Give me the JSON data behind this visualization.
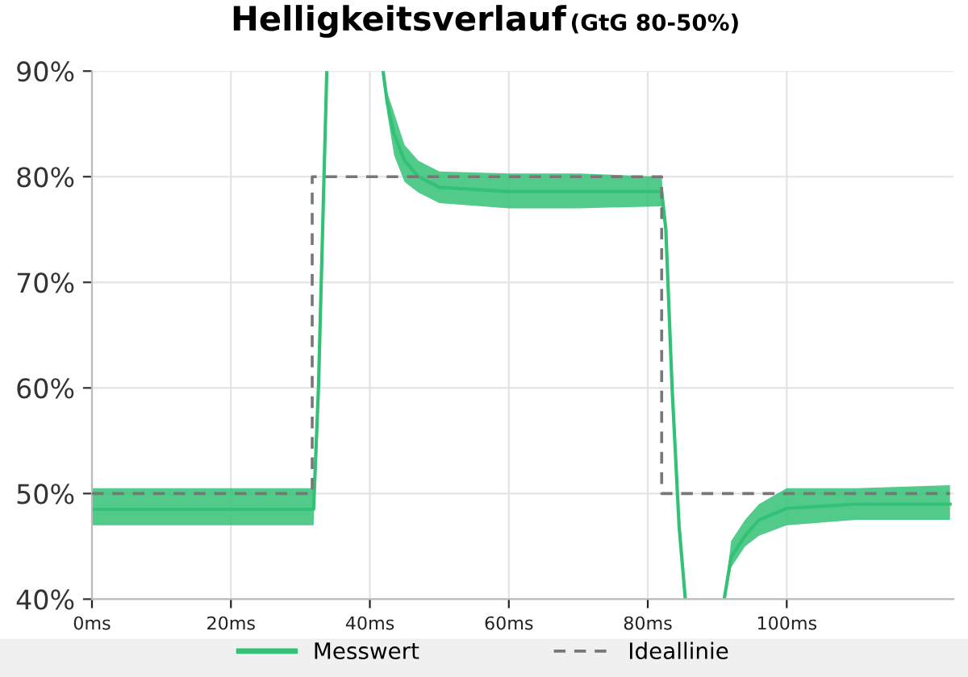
{
  "chart_data": {
    "type": "line",
    "title": "Helligkeitsverlauf",
    "subtitle": "(GtG 80-50%)",
    "xlim": [
      0,
      124
    ],
    "ylim": [
      40,
      90
    ],
    "xticks": [
      {
        "value": 0,
        "label": "0ms"
      },
      {
        "value": 20,
        "label": "20ms"
      },
      {
        "value": 40,
        "label": "40ms"
      },
      {
        "value": 60,
        "label": "60ms"
      },
      {
        "value": 80,
        "label": "80ms"
      },
      {
        "value": 100,
        "label": "100ms"
      }
    ],
    "yticks": [
      {
        "value": 40,
        "label": "40%"
      },
      {
        "value": 50,
        "label": "50%"
      },
      {
        "value": 60,
        "label": "60%"
      },
      {
        "value": 70,
        "label": "70%"
      },
      {
        "value": 80,
        "label": "80%"
      },
      {
        "value": 90,
        "label": "90%"
      }
    ],
    "grid": true,
    "legend": "bottom",
    "marker": "none",
    "series": [
      {
        "name": "Messwert",
        "color": "#33c175",
        "line_style": "solid",
        "x": [
          0,
          31.9,
          32.6,
          33.2,
          33.8,
          34,
          41.5,
          41.9,
          42.5,
          43.5,
          45,
          47,
          50,
          60,
          70,
          82,
          82.6,
          83.5,
          84.5,
          85.4,
          85.6,
          90.8,
          91,
          92,
          94,
          96,
          100,
          110,
          123.5
        ],
        "values": [
          48.5,
          48.5,
          60,
          75,
          90,
          null,
          null,
          90,
          87,
          84,
          81.5,
          80,
          79,
          78.6,
          78.6,
          78.6,
          75,
          60,
          47,
          40,
          null,
          null,
          40,
          44,
          46,
          47.5,
          48.6,
          49,
          49
        ],
        "lower": [
          47,
          47,
          60,
          75,
          90,
          null,
          null,
          90,
          86,
          82,
          79.5,
          78.5,
          77.5,
          77,
          77,
          77.2,
          75,
          60,
          47,
          40,
          null,
          null,
          40,
          43,
          45,
          46,
          47,
          47.5,
          47.5
        ],
        "upper": [
          50.5,
          50.5,
          60,
          75,
          90,
          null,
          null,
          90,
          88,
          86,
          83,
          81.5,
          80.5,
          80.3,
          80.3,
          80,
          75,
          60,
          47,
          40,
          null,
          null,
          40,
          45.5,
          47.5,
          49,
          50.5,
          50.5,
          50.8
        ]
      },
      {
        "name": "Ideallinie",
        "color": "#777777",
        "line_style": "dashed",
        "type": "step",
        "x": [
          0,
          31.7,
          82,
          123.5
        ],
        "values": [
          50,
          80,
          50,
          50
        ]
      }
    ]
  }
}
